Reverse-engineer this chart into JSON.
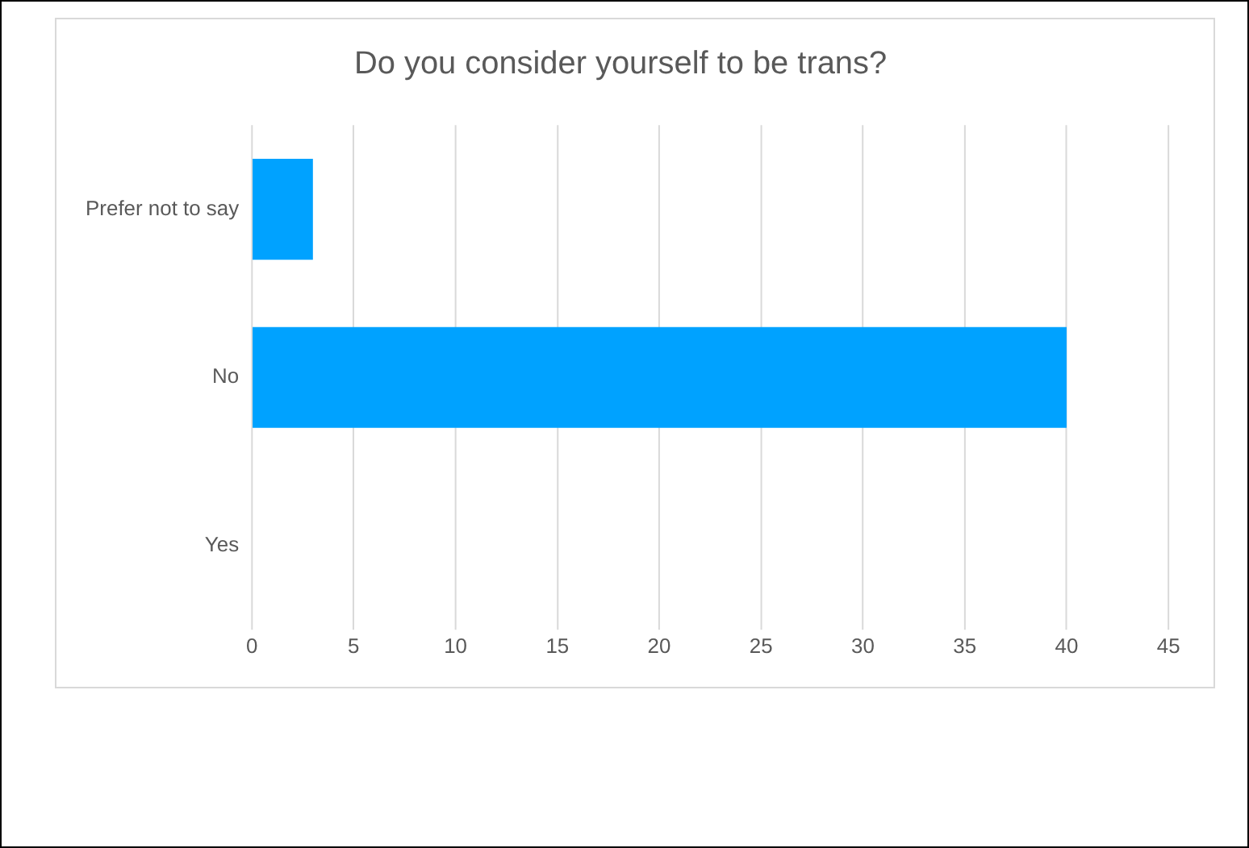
{
  "chart_data": {
    "type": "bar",
    "orientation": "horizontal",
    "title": "Do you consider yourself to be trans?",
    "categories": [
      "Prefer not to say",
      "No",
      "Yes"
    ],
    "values": [
      3,
      40,
      0
    ],
    "color": "#00a2ff",
    "xlim": [
      0,
      45
    ],
    "xticks": [
      0,
      5,
      10,
      15,
      20,
      25,
      30,
      35,
      40,
      45
    ],
    "grid": "x",
    "legend": false
  }
}
